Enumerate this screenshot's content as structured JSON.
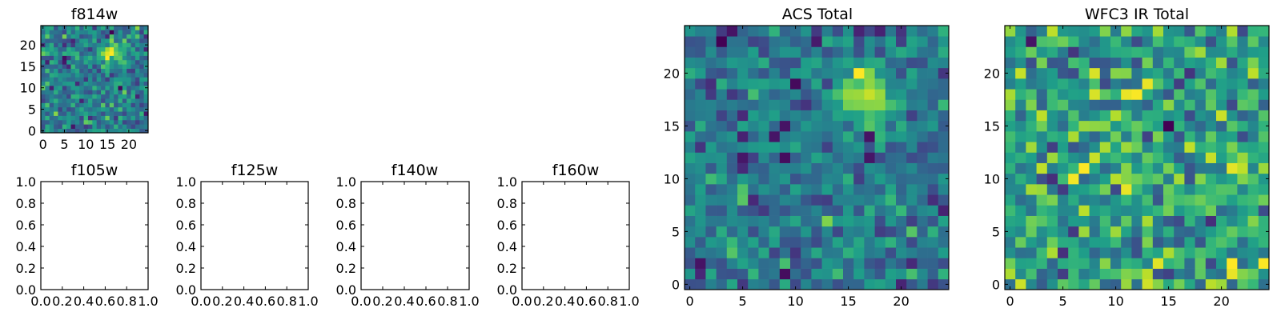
{
  "chart_data": [
    {
      "type": "heatmap",
      "title": "f814w",
      "grid": false,
      "xlim": [
        -0.5,
        24.5
      ],
      "ylim": [
        -0.5,
        24.5
      ],
      "xticks": [
        0,
        5,
        10,
        15,
        20
      ],
      "yticks": [
        0,
        5,
        10,
        15,
        20
      ],
      "xtick_labels": [
        "0",
        "5",
        "10",
        "15",
        "20"
      ],
      "ytick_labels": [
        "0",
        "5",
        "10",
        "15",
        "20"
      ],
      "colormap": "viridis",
      "image_size": [
        25,
        25
      ],
      "bright_source_center": [
        16,
        18
      ],
      "bright_source_sigma": 1.8,
      "noise_seed": 11
    },
    {
      "type": "empty",
      "title": "f105w",
      "xlim": [
        0,
        1
      ],
      "ylim": [
        0,
        1
      ],
      "xtick_labels": [
        "0.0",
        "0.2",
        "0.4",
        "0.6",
        "0.8",
        "1.0"
      ],
      "ytick_labels": [
        "0.0",
        "0.2",
        "0.4",
        "0.6",
        "0.8",
        "1.0"
      ]
    },
    {
      "type": "empty",
      "title": "f125w",
      "xlim": [
        0,
        1
      ],
      "ylim": [
        0,
        1
      ],
      "xtick_labels": [
        "0.0",
        "0.2",
        "0.4",
        "0.6",
        "0.8",
        "1.0"
      ],
      "ytick_labels": [
        "0.0",
        "0.2",
        "0.4",
        "0.6",
        "0.8",
        "1.0"
      ]
    },
    {
      "type": "empty",
      "title": "f140w",
      "xlim": [
        0,
        1
      ],
      "ylim": [
        0,
        1
      ],
      "xtick_labels": [
        "0.0",
        "0.2",
        "0.4",
        "0.6",
        "0.8",
        "1.0"
      ],
      "ytick_labels": [
        "0.0",
        "0.2",
        "0.4",
        "0.6",
        "0.8",
        "1.0"
      ]
    },
    {
      "type": "empty",
      "title": "f160w",
      "xlim": [
        0,
        1
      ],
      "ylim": [
        0,
        1
      ],
      "xtick_labels": [
        "0.0",
        "0.2",
        "0.4",
        "0.6",
        "0.8",
        "1.0"
      ],
      "ytick_labels": [
        "0.0",
        "0.2",
        "0.4",
        "0.6",
        "0.8",
        "1.0"
      ]
    },
    {
      "type": "heatmap",
      "title": "ACS Total",
      "grid": false,
      "xlim": [
        -0.5,
        24.5
      ],
      "ylim": [
        -0.5,
        24.5
      ],
      "xticks": [
        0,
        5,
        10,
        15,
        20
      ],
      "yticks": [
        0,
        5,
        10,
        15,
        20
      ],
      "xtick_labels": [
        "0",
        "5",
        "10",
        "15",
        "20"
      ],
      "ytick_labels": [
        "0",
        "5",
        "10",
        "15",
        "20"
      ],
      "colormap": "viridis",
      "image_size": [
        25,
        25
      ],
      "bright_source_center": [
        16.5,
        18
      ],
      "bright_source_sigma": 1.9,
      "noise_seed": 23
    },
    {
      "type": "heatmap",
      "title": "WFC3 IR Total",
      "grid": false,
      "xlim": [
        -0.5,
        24.5
      ],
      "ylim": [
        -0.5,
        24.5
      ],
      "xticks": [
        0,
        5,
        10,
        15,
        20
      ],
      "yticks": [
        0,
        5,
        10,
        15,
        20
      ],
      "xtick_labels": [
        "0",
        "5",
        "10",
        "15",
        "20"
      ],
      "ytick_labels": [
        "0",
        "5",
        "10",
        "15",
        "20"
      ],
      "colormap": "viridis",
      "image_size": [
        25,
        25
      ],
      "bright_source_center": null,
      "bright_source_sigma": null,
      "noise_seed": 37
    }
  ]
}
